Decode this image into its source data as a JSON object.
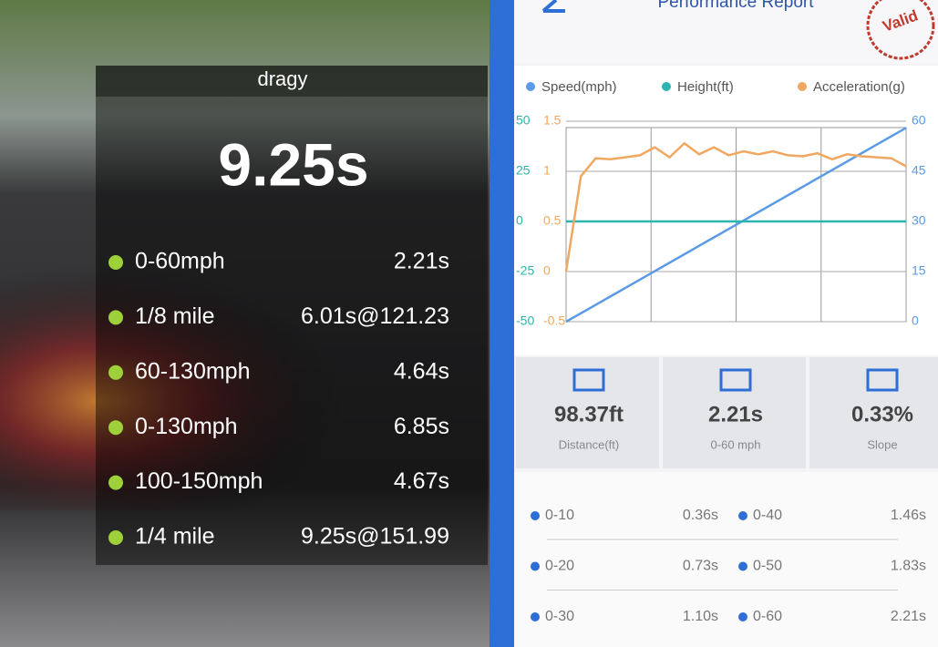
{
  "overlay": {
    "brand": "dragy",
    "total_time": "9.25s",
    "rows": [
      {
        "label": "0-60mph",
        "value": "2.21s"
      },
      {
        "label": "1/8 mile",
        "value": "6.01s@121.23"
      },
      {
        "label": "60-130mph",
        "value": "4.64s"
      },
      {
        "label": "0-130mph",
        "value": "6.85s"
      },
      {
        "label": "100-150mph",
        "value": "4.67s"
      },
      {
        "label": "1/4 mile",
        "value": "9.25s@151.99"
      }
    ]
  },
  "app": {
    "title": "Performance Report",
    "stamp": "Valid",
    "chart": {
      "type": "line",
      "grid": true,
      "series": [
        {
          "name": "Speed(mph)",
          "color": "#5b9be6",
          "axis": "y2",
          "values": [
            0,
            58
          ]
        },
        {
          "name": "Height(ft)",
          "color": "#2cb5b0",
          "axis": "y",
          "values": [
            0,
            0
          ]
        },
        {
          "name": "Acceleration(g)",
          "color": "#f0a860",
          "axis": "y3",
          "values": [
            0,
            0.95,
            1.13,
            1.12,
            1.14,
            1.16,
            1.24,
            1.14,
            1.28,
            1.17,
            1.24,
            1.16,
            1.2,
            1.17,
            1.2,
            1.16,
            1.15,
            1.18,
            1.12,
            1.17,
            1.15,
            1.14,
            1.13,
            1.05
          ]
        }
      ],
      "ylim": [
        -50,
        50
      ],
      "yticks": [
        50,
        25,
        0,
        -25,
        -50
      ],
      "y3lim": [
        -0.5,
        1.5
      ],
      "y3ticks": [
        1.5,
        1,
        0.5,
        0,
        -0.5
      ],
      "y2lim": [
        0,
        60
      ],
      "y2ticks": [
        60,
        45,
        30,
        15,
        0
      ]
    },
    "stats": [
      {
        "value": "98.37ft",
        "label": "Distance(ft)"
      },
      {
        "value": "2.21s",
        "label": "0-60 mph"
      },
      {
        "value": "0.33%",
        "label": "Slope"
      }
    ],
    "splits": [
      {
        "label": "0-10",
        "value": "0.36s"
      },
      {
        "label": "0-20",
        "value": "0.73s"
      },
      {
        "label": "0-30",
        "value": "1.10s"
      },
      {
        "label": "0-40",
        "value": "1.46s"
      },
      {
        "label": "0-50",
        "value": "1.83s"
      },
      {
        "label": "0-60",
        "value": "2.21s"
      }
    ]
  }
}
